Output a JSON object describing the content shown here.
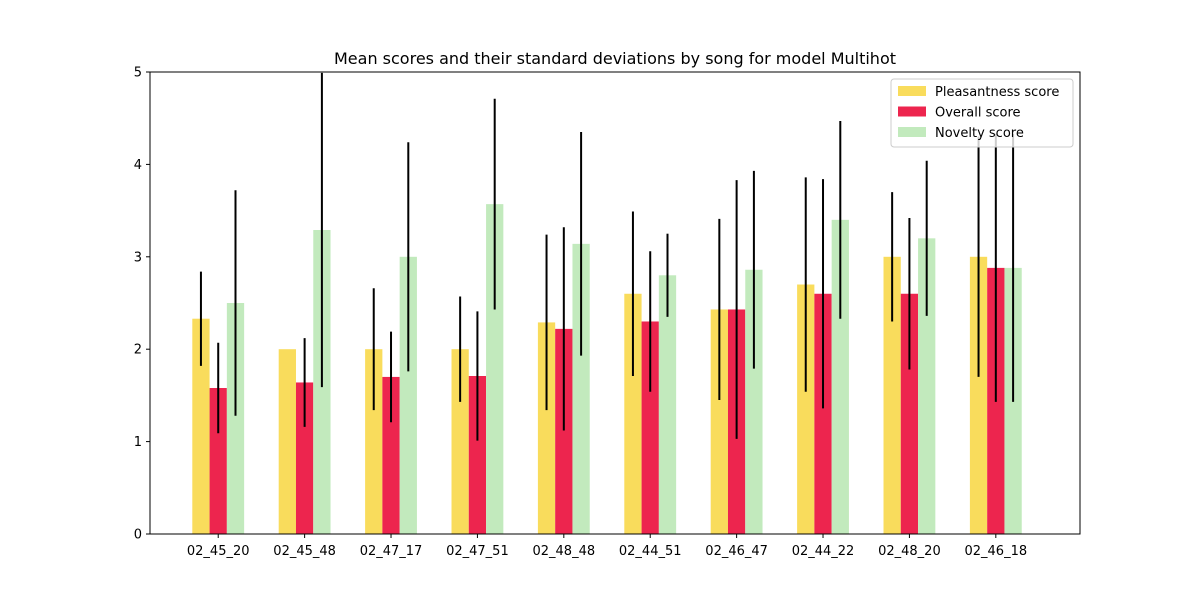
{
  "chart_data": {
    "type": "bar",
    "title": "Mean scores and their standard deviations by song for model Multihot",
    "xlabel": "",
    "ylabel": "",
    "ylim": [
      0,
      5
    ],
    "yticks": [
      0,
      1,
      2,
      3,
      4,
      5
    ],
    "grid": false,
    "legend_position": "top-right",
    "categories": [
      "02_45_20",
      "02_45_48",
      "02_47_17",
      "02_47_51",
      "02_48_48",
      "02_44_51",
      "02_46_47",
      "02_44_22",
      "02_48_20",
      "02_46_18"
    ],
    "series": [
      {
        "name": "Pleasantness score",
        "color": "#f9dc5c",
        "values": [
          2.33,
          2.0,
          2.0,
          2.0,
          2.29,
          2.6,
          2.43,
          2.7,
          3.0,
          3.0
        ],
        "errors": [
          0.51,
          0.0,
          0.66,
          0.57,
          0.95,
          0.89,
          0.98,
          1.16,
          0.7,
          1.3
        ]
      },
      {
        "name": "Overall score",
        "color": "#ed254e",
        "values": [
          1.58,
          1.64,
          1.7,
          1.71,
          2.22,
          2.3,
          2.43,
          2.6,
          2.6,
          2.88
        ],
        "errors": [
          0.49,
          0.48,
          0.49,
          0.7,
          1.1,
          0.76,
          1.4,
          1.24,
          0.82,
          1.45
        ]
      },
      {
        "name": "Novelty score",
        "color": "#c2eabd",
        "values": [
          2.5,
          3.29,
          3.0,
          3.57,
          3.14,
          2.8,
          2.86,
          3.4,
          3.2,
          2.88
        ],
        "errors": [
          1.22,
          1.7,
          1.24,
          1.14,
          1.21,
          0.45,
          1.07,
          1.07,
          0.84,
          1.45
        ]
      }
    ]
  }
}
